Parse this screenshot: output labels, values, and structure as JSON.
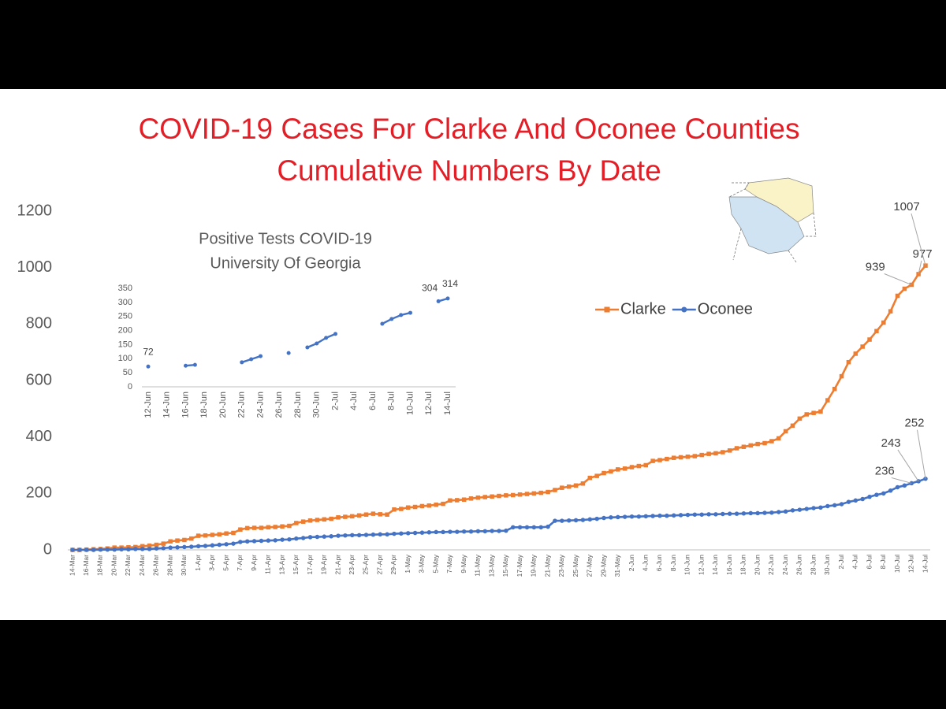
{
  "chart_data": [
    {
      "type": "line",
      "title": "COVID-19 Cases For Clarke And Oconee Counties",
      "subtitle": "Cumulative Numbers By Date",
      "categories": [
        "14-Mar",
        null,
        "16-Mar",
        null,
        "18-Mar",
        null,
        "20-Mar",
        null,
        "22-Mar",
        null,
        "24-Mar",
        null,
        "26-Mar",
        null,
        "28-Mar",
        null,
        "30-Mar",
        null,
        "1-Apr",
        null,
        "3-Apr",
        null,
        "5-Apr",
        null,
        "7-Apr",
        null,
        "9-Apr",
        null,
        "11-Apr",
        null,
        "13-Apr",
        null,
        "15-Apr",
        null,
        "17-Apr",
        null,
        "19-Apr",
        null,
        "21-Apr",
        null,
        "23-Apr",
        null,
        "25-Apr",
        null,
        "27-Apr",
        null,
        "29-Apr",
        null,
        "1-May",
        null,
        "3-May",
        null,
        "5-May",
        null,
        "7-May",
        null,
        "9-May",
        null,
        "11-May",
        null,
        "13-May",
        null,
        "15-May",
        null,
        "17-May",
        null,
        "19-May",
        null,
        "21-May",
        null,
        "23-May",
        null,
        "25-May",
        null,
        "27-May",
        null,
        "29-May",
        null,
        "31-May",
        null,
        "2-Jun",
        null,
        "4-Jun",
        null,
        "6-Jun",
        null,
        "8-Jun",
        null,
        "10-Jun",
        null,
        "12-Jun",
        null,
        "14-Jun",
        null,
        "16-Jun",
        null,
        "18-Jun",
        null,
        "20-Jun",
        null,
        "22-Jun",
        null,
        "24-Jun",
        null,
        "26-Jun",
        null,
        "28-Jun",
        null,
        "30-Jun",
        null,
        "2-Jul",
        null,
        "4-Jul",
        null,
        "6-Jul",
        null,
        "8-Jul",
        null,
        "10-Jul",
        null,
        "12-Jul",
        null,
        "14-Jul"
      ],
      "series": [
        {
          "name": "Clarke",
          "color": "#ed7d31",
          "marker": "square",
          "values": [
            0,
            0,
            1,
            2,
            3,
            5,
            8,
            8,
            9,
            10,
            13,
            15,
            18,
            22,
            30,
            33,
            35,
            40,
            50,
            51,
            53,
            55,
            58,
            60,
            72,
            77,
            78,
            78,
            80,
            81,
            83,
            85,
            95,
            100,
            104,
            106,
            108,
            110,
            115,
            117,
            119,
            122,
            125,
            128,
            126,
            125,
            143,
            145,
            150,
            152,
            155,
            157,
            160,
            163,
            175,
            176,
            178,
            182,
            185,
            187,
            189,
            191,
            193,
            194,
            196,
            198,
            200,
            202,
            205,
            212,
            220,
            224,
            228,
            235,
            255,
            262,
            272,
            278,
            285,
            288,
            293,
            297,
            300,
            315,
            318,
            322,
            326,
            328,
            330,
            332,
            336,
            340,
            342,
            346,
            352,
            360,
            365,
            370,
            375,
            378,
            385,
            395,
            420,
            440,
            465,
            480,
            485,
            490,
            530,
            570,
            615,
            665,
            695,
            720,
            745,
            775,
            805,
            845,
            900,
            925,
            939,
            977,
            1007
          ]
        },
        {
          "name": "Oconee",
          "color": "#4472c4",
          "marker": "circle",
          "values": [
            0,
            0,
            0,
            0,
            1,
            1,
            1,
            2,
            2,
            3,
            3,
            3,
            5,
            6,
            8,
            9,
            10,
            11,
            13,
            14,
            16,
            18,
            20,
            22,
            28,
            30,
            31,
            32,
            33,
            34,
            36,
            37,
            40,
            42,
            45,
            46,
            47,
            48,
            50,
            51,
            52,
            52,
            53,
            54,
            55,
            55,
            57,
            58,
            59,
            60,
            61,
            62,
            63,
            63,
            64,
            64,
            65,
            65,
            66,
            66,
            67,
            67,
            68,
            80,
            80,
            80,
            80,
            80,
            82,
            103,
            103,
            104,
            105,
            106,
            108,
            110,
            113,
            115,
            116,
            117,
            118,
            118,
            119,
            120,
            121,
            121,
            122,
            123,
            124,
            125,
            125,
            126,
            126,
            127,
            128,
            128,
            129,
            130,
            130,
            131,
            132,
            134,
            136,
            140,
            142,
            145,
            148,
            150,
            155,
            158,
            162,
            170,
            175,
            180,
            188,
            195,
            200,
            210,
            222,
            228,
            236,
            243,
            252
          ]
        }
      ],
      "ylim": [
        0,
        1200
      ],
      "yticks": [
        0,
        200,
        400,
        600,
        800,
        1000,
        1200
      ],
      "grid": false,
      "legend": "center right"
    },
    {
      "type": "line",
      "title": "Positive Tests COVID-19",
      "subtitle": "University Of Georgia",
      "categories": [
        "12-Jun",
        null,
        "14-Jun",
        null,
        "16-Jun",
        null,
        "18-Jun",
        null,
        "20-Jun",
        null,
        "22-Jun",
        null,
        "24-Jun",
        null,
        "26-Jun",
        null,
        "28-Jun",
        null,
        "30-Jun",
        null,
        "2-Jul",
        null,
        "4-Jul",
        null,
        "6-Jul",
        null,
        "8-Jul",
        null,
        "10-Jul",
        null,
        "12-Jul",
        null,
        "14-Jul"
      ],
      "values": [
        72,
        null,
        null,
        null,
        75,
        78,
        null,
        null,
        null,
        null,
        87,
        98,
        109,
        null,
        null,
        120,
        null,
        140,
        154,
        174,
        188,
        null,
        null,
        null,
        null,
        224,
        241,
        255,
        263,
        null,
        null,
        304,
        314
      ],
      "color": "#4472c4",
      "marker": "circle",
      "ylim": [
        0,
        350
      ],
      "yticks": [
        0,
        50,
        100,
        150,
        200,
        250,
        300,
        350
      ],
      "grid": false
    }
  ]
}
